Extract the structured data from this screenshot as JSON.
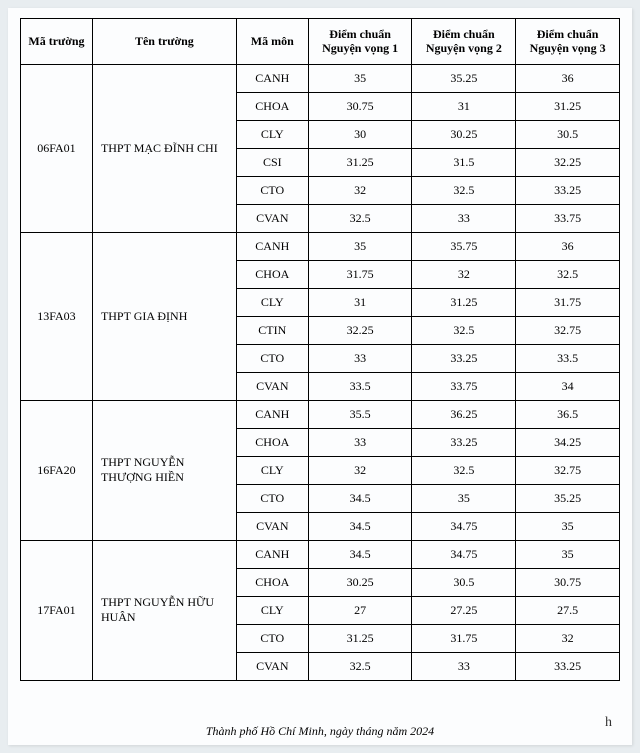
{
  "table": {
    "columns": [
      "Mã trường",
      "Tên trường",
      "Mã môn",
      "Điểm chuẩn Nguyện vọng 1",
      "Điểm chuẩn Nguyện vọng 2",
      "Điểm chuẩn Nguyện vọng 3"
    ],
    "column_widths_pct": [
      12,
      24,
      12,
      17.3,
      17.3,
      17.3
    ],
    "border_color": "#000000",
    "background_color": "#fcfdfe",
    "text_color": "#000000",
    "header_fontsize": 12,
    "cell_fontsize": 12,
    "font_family": "Times New Roman",
    "schools": [
      {
        "ma_truong": "06FA01",
        "ten_truong": "THPT MẠC ĐĨNH CHI",
        "subjects": [
          {
            "ma_mon": "CANH",
            "nv1": "35",
            "nv2": "35.25",
            "nv3": "36"
          },
          {
            "ma_mon": "CHOA",
            "nv1": "30.75",
            "nv2": "31",
            "nv3": "31.25"
          },
          {
            "ma_mon": "CLY",
            "nv1": "30",
            "nv2": "30.25",
            "nv3": "30.5"
          },
          {
            "ma_mon": "CSI",
            "nv1": "31.25",
            "nv2": "31.5",
            "nv3": "32.25"
          },
          {
            "ma_mon": "CTO",
            "nv1": "32",
            "nv2": "32.5",
            "nv3": "33.25"
          },
          {
            "ma_mon": "CVAN",
            "nv1": "32.5",
            "nv2": "33",
            "nv3": "33.75"
          }
        ]
      },
      {
        "ma_truong": "13FA03",
        "ten_truong": "THPT GIA ĐỊNH",
        "subjects": [
          {
            "ma_mon": "CANH",
            "nv1": "35",
            "nv2": "35.75",
            "nv3": "36"
          },
          {
            "ma_mon": "CHOA",
            "nv1": "31.75",
            "nv2": "32",
            "nv3": "32.5"
          },
          {
            "ma_mon": "CLY",
            "nv1": "31",
            "nv2": "31.25",
            "nv3": "31.75"
          },
          {
            "ma_mon": "CTIN",
            "nv1": "32.25",
            "nv2": "32.5",
            "nv3": "32.75"
          },
          {
            "ma_mon": "CTO",
            "nv1": "33",
            "nv2": "33.25",
            "nv3": "33.5"
          },
          {
            "ma_mon": "CVAN",
            "nv1": "33.5",
            "nv2": "33.75",
            "nv3": "34"
          }
        ]
      },
      {
        "ma_truong": "16FA20",
        "ten_truong": "THPT NGUYỄN THƯỢNG HIỀN",
        "subjects": [
          {
            "ma_mon": "CANH",
            "nv1": "35.5",
            "nv2": "36.25",
            "nv3": "36.5"
          },
          {
            "ma_mon": "CHOA",
            "nv1": "33",
            "nv2": "33.25",
            "nv3": "34.25"
          },
          {
            "ma_mon": "CLY",
            "nv1": "32",
            "nv2": "32.5",
            "nv3": "32.75"
          },
          {
            "ma_mon": "CTO",
            "nv1": "34.5",
            "nv2": "35",
            "nv3": "35.25"
          },
          {
            "ma_mon": "CVAN",
            "nv1": "34.5",
            "nv2": "34.75",
            "nv3": "35"
          }
        ]
      },
      {
        "ma_truong": "17FA01",
        "ten_truong": "THPT NGUYỄN HỮU HUÂN",
        "subjects": [
          {
            "ma_mon": "CANH",
            "nv1": "34.5",
            "nv2": "34.75",
            "nv3": "35"
          },
          {
            "ma_mon": "CHOA",
            "nv1": "30.25",
            "nv2": "30.5",
            "nv3": "30.75"
          },
          {
            "ma_mon": "CLY",
            "nv1": "27",
            "nv2": "27.25",
            "nv3": "27.5"
          },
          {
            "ma_mon": "CTO",
            "nv1": "31.25",
            "nv2": "31.75",
            "nv3": "32"
          },
          {
            "ma_mon": "CVAN",
            "nv1": "32.5",
            "nv2": "33",
            "nv3": "33.25"
          }
        ]
      }
    ]
  },
  "footer": "Thành phố Hồ Chí Minh, ngày    tháng    năm 2024",
  "signature": "h"
}
